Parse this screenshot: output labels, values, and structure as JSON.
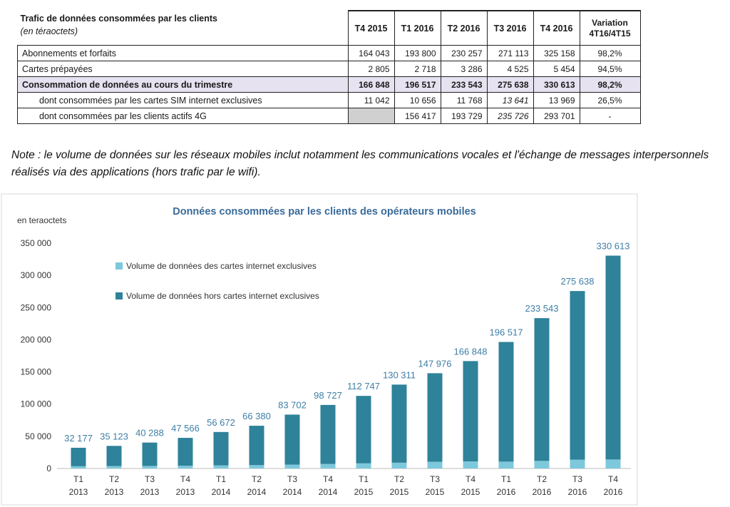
{
  "table": {
    "title": "Trafic de données consommées par les clients",
    "unit": "(en téraoctets)",
    "headers": [
      "T4 2015",
      "T1 2016",
      "T2 2016",
      "T3 2016",
      "T4 2016"
    ],
    "variation_header": [
      "Variation",
      "4T16/4T15"
    ],
    "rows": [
      {
        "label": "Abonnements et forfaits",
        "values": [
          "164 043",
          "193 800",
          "230 257",
          "271 113",
          "325 158"
        ],
        "variation": "98,2%"
      },
      {
        "label": "Cartes prépayées",
        "values": [
          "2 805",
          "2 718",
          "3 286",
          "4 525",
          "5 454"
        ],
        "variation": "94,5%"
      },
      {
        "label": "Consommation de données au cours du  trimestre",
        "values": [
          "166 848",
          "196 517",
          "233 543",
          "275 638",
          "330 613"
        ],
        "variation": "98,2%"
      },
      {
        "label": "dont consommées par les cartes SIM internet exclusives",
        "values": [
          "11 042",
          "10 656",
          "11 768",
          "13 641",
          "13 969"
        ],
        "variation": "26,5%"
      },
      {
        "label": "dont consommées par les clients actifs 4G",
        "values": [
          "",
          "156 417",
          "193 729",
          "235 726",
          "293 701"
        ],
        "variation": "-"
      }
    ]
  },
  "note": "Note : le volume de données sur les réseaux mobiles inclut notamment les communications vocales et l'échange de messages interpersonnels réalisés via des applications (hors trafic par le wifi).",
  "chart_data": {
    "type": "bar",
    "stacked": true,
    "title": "Données consommées par les clients des opérateurs mobiles",
    "unit_label": "en teraoctets",
    "ylim": [
      0,
      350000
    ],
    "yticks": [
      0,
      50000,
      100000,
      150000,
      200000,
      250000,
      300000,
      350000
    ],
    "ytick_labels": [
      "0",
      "50 000",
      "100 000",
      "150 000",
      "200 000",
      "250 000",
      "300 000",
      "350 000"
    ],
    "grid": false,
    "legend_position": "top-left",
    "categories": [
      [
        "T1",
        "2013"
      ],
      [
        "T2",
        "2013"
      ],
      [
        "T3",
        "2013"
      ],
      [
        "T4",
        "2013"
      ],
      [
        "T1",
        "2014"
      ],
      [
        "T2",
        "2014"
      ],
      [
        "T3",
        "2014"
      ],
      [
        "T4",
        "2014"
      ],
      [
        "T1",
        "2015"
      ],
      [
        "T2",
        "2015"
      ],
      [
        "T3",
        "2015"
      ],
      [
        "T4",
        "2015"
      ],
      [
        "T1",
        "2016"
      ],
      [
        "T2",
        "2016"
      ],
      [
        "T3",
        "2016"
      ],
      [
        "T4",
        "2016"
      ]
    ],
    "series": [
      {
        "name": "Volume de données des cartes internet exclusives",
        "color": "#7ec8dc",
        "values": [
          3500,
          3800,
          4000,
          4300,
          4800,
          5200,
          6000,
          7000,
          8000,
          9000,
          10500,
          11042,
          10656,
          11768,
          13641,
          13969
        ]
      },
      {
        "name": "Volume de données hors cartes internet exclusives",
        "color": "#2e8299",
        "values": [
          28677,
          31323,
          36288,
          43266,
          51872,
          61180,
          77702,
          91727,
          104747,
          121311,
          137476,
          155806,
          185861,
          221775,
          261997,
          316644
        ]
      }
    ],
    "totals": [
      32177,
      35123,
      40288,
      47566,
      56672,
      66380,
      83702,
      98727,
      112747,
      130311,
      147976,
      166848,
      196517,
      233543,
      275638,
      330613
    ],
    "total_labels": [
      "32 177",
      "35 123",
      "40 288",
      "47 566",
      "56 672",
      "66 380",
      "83 702",
      "98 727",
      "112 747",
      "130 311",
      "147 976",
      "166 848",
      "196 517",
      "233 543",
      "275 638",
      "330 613"
    ]
  }
}
